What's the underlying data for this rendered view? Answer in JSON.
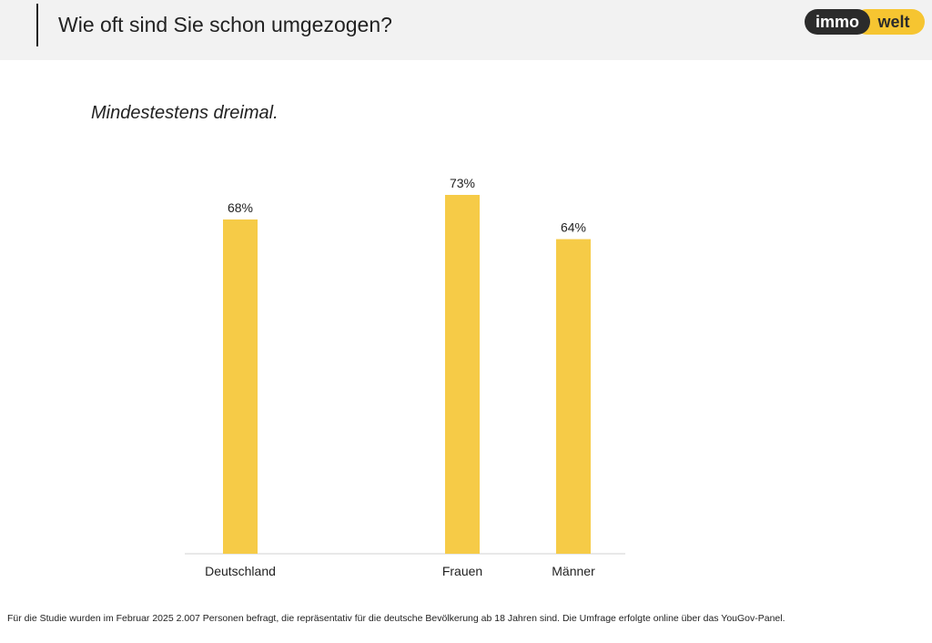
{
  "header": {
    "title": "Wie oft sind Sie schon umgezogen?",
    "logo_left": "immo",
    "logo_right": "welt"
  },
  "colors": {
    "bar": "#F6CB47",
    "header_bg": "#f2f2f2",
    "logo_dark": "#2b2b2b",
    "logo_yellow": "#F6C531"
  },
  "chart_data": {
    "type": "bar",
    "title": "Mindestestens dreimal.",
    "categories": [
      "Deutschland",
      "Frauen",
      "Männer"
    ],
    "values": [
      68,
      73,
      64
    ],
    "value_labels": [
      "68%",
      "73%",
      "64%"
    ],
    "unit": "%",
    "ylim": [
      0,
      73
    ],
    "grid": false
  },
  "footnote": "Für die Studie wurden im Februar 2025 2.007 Personen befragt, die repräsentativ für die deutsche Bevölkerung ab 18 Jahren sind. Die Umfrage erfolgte online über das YouGov-Panel."
}
